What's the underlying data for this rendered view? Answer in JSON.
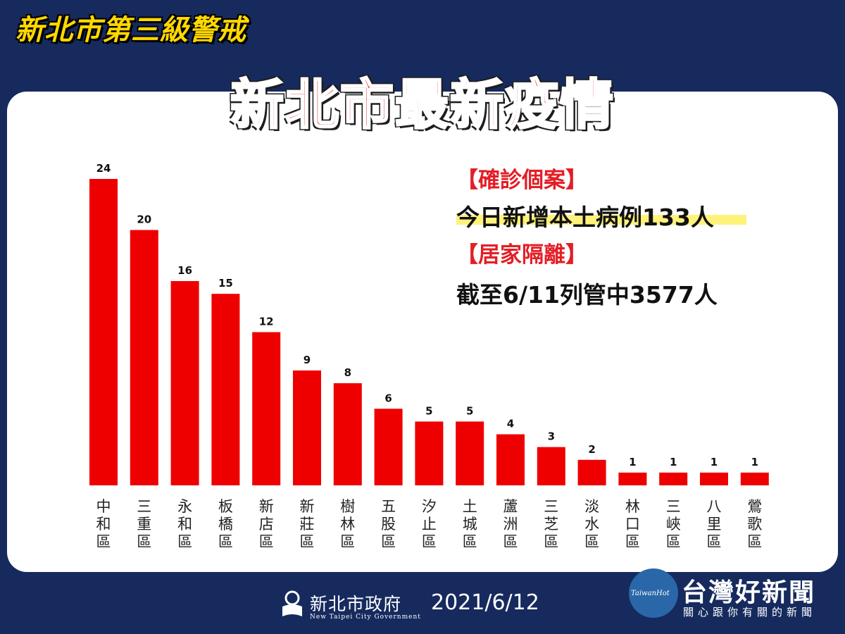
{
  "header": {
    "alert_title": "新北市第三級警戒",
    "main_title": "新北市最新疫情"
  },
  "info": {
    "confirmed_heading": "【確診個案】",
    "confirmed_text": "今日新增本土病例133人",
    "isolation_heading": "【居家隔離】",
    "isolation_text": "截至6/11列管中3577人"
  },
  "footer": {
    "org_name": "新北市政府",
    "org_name_en": "New Taipei City Government",
    "date": "2021/6/12",
    "watermark_name": "台灣好新聞",
    "watermark_slogan": "關心跟你有關的新聞",
    "watermark_logo_text": "TaiwanHot"
  },
  "colors": {
    "bar": "#ee0000",
    "background": "#162a5e",
    "accent_red": "#e41e26",
    "highlight": "#fff27a"
  },
  "chart_data": {
    "type": "bar",
    "title": "",
    "xlabel": "",
    "ylabel": "",
    "categories": [
      "中和區",
      "三重區",
      "永和區",
      "板橋區",
      "新店區",
      "新莊區",
      "樹林區",
      "五股區",
      "汐止區",
      "土城區",
      "蘆洲區",
      "三芝區",
      "淡水區",
      "林口區",
      "三峽區",
      "八里區",
      "鶯歌區"
    ],
    "values": [
      24,
      20,
      16,
      15,
      12,
      9,
      8,
      6,
      5,
      5,
      4,
      3,
      2,
      1,
      1,
      1,
      1
    ],
    "ylim": [
      0,
      24
    ],
    "grid": false,
    "data_labels": true
  }
}
